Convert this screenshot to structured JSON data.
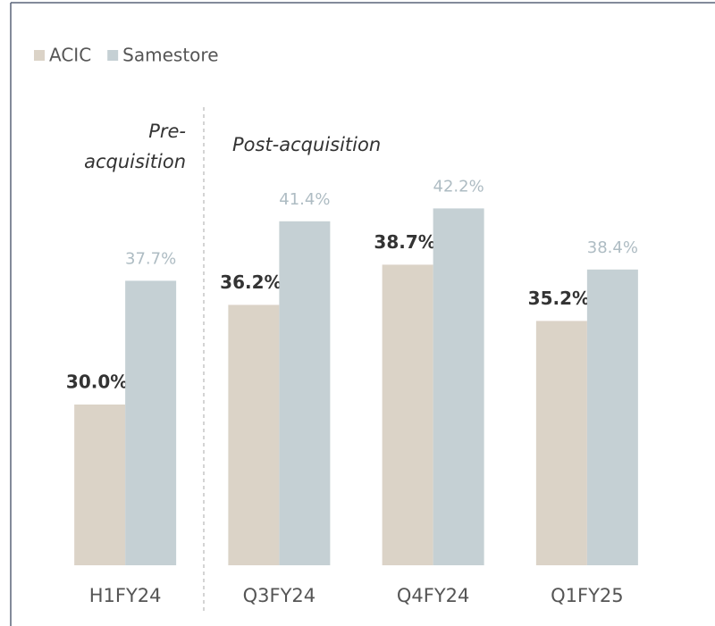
{
  "chart_data": {
    "type": "bar",
    "categories": [
      "H1FY24",
      "Q3FY24",
      "Q4FY24",
      "Q1FY25"
    ],
    "series": [
      {
        "name": "ACIC",
        "color": "#dbd3c7",
        "values": [
          30.0,
          36.2,
          38.7,
          35.2
        ],
        "value_labels": [
          "30.0%",
          "36.2%",
          "38.7%",
          "35.2%"
        ]
      },
      {
        "name": "Samestore",
        "color": "#c5d0d4",
        "values": [
          37.7,
          41.4,
          42.2,
          38.4
        ],
        "value_labels": [
          "37.7%",
          "41.4%",
          "42.2%",
          "38.4%"
        ]
      }
    ],
    "annotations": [
      "Pre-acquisition",
      "Post-acquisition"
    ],
    "ylim": [
      20,
      50
    ],
    "legend": "top-left"
  }
}
